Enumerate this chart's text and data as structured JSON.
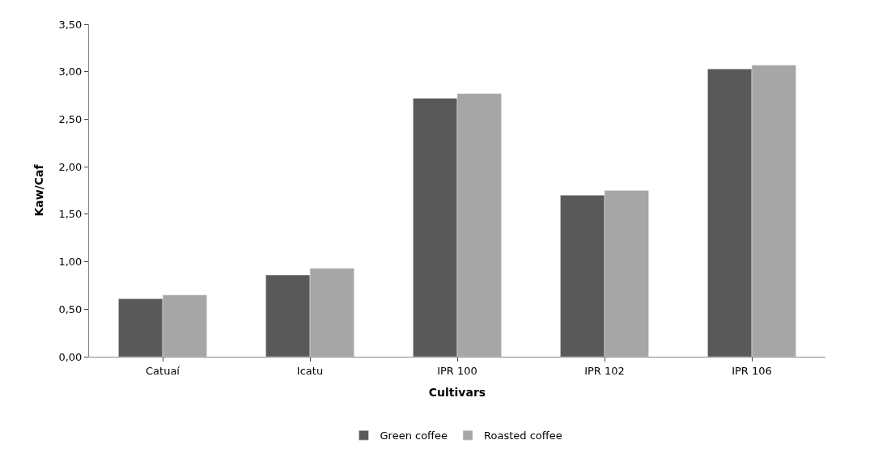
{
  "chart_data": {
    "type": "bar",
    "xlabel": "Cultivars",
    "ylabel": "Kaw/Caf",
    "categories": [
      "Catuaí",
      "Icatu",
      "IPR 100",
      "IPR 102",
      "IPR 106"
    ],
    "series": [
      {
        "name": "Green coffee",
        "color": "#595959",
        "values": [
          0.61,
          0.86,
          2.72,
          1.7,
          3.03
        ]
      },
      {
        "name": "Roasted coffee",
        "color": "#a6a6a6",
        "values": [
          0.65,
          0.93,
          2.77,
          1.75,
          3.07
        ]
      }
    ],
    "ylim": [
      0,
      3.5
    ],
    "yticks": [
      {
        "value": 0,
        "label": "0,00"
      },
      {
        "value": 0.5,
        "label": "0,50"
      },
      {
        "value": 1,
        "label": "1,00"
      },
      {
        "value": 1.5,
        "label": "1,50"
      },
      {
        "value": 2,
        "label": "2,00"
      },
      {
        "value": 2.5,
        "label": "2,50"
      },
      {
        "value": 3,
        "label": "3,00"
      },
      {
        "value": 3.5,
        "label": "3,50"
      }
    ],
    "grid": false,
    "legend": "bottom"
  }
}
